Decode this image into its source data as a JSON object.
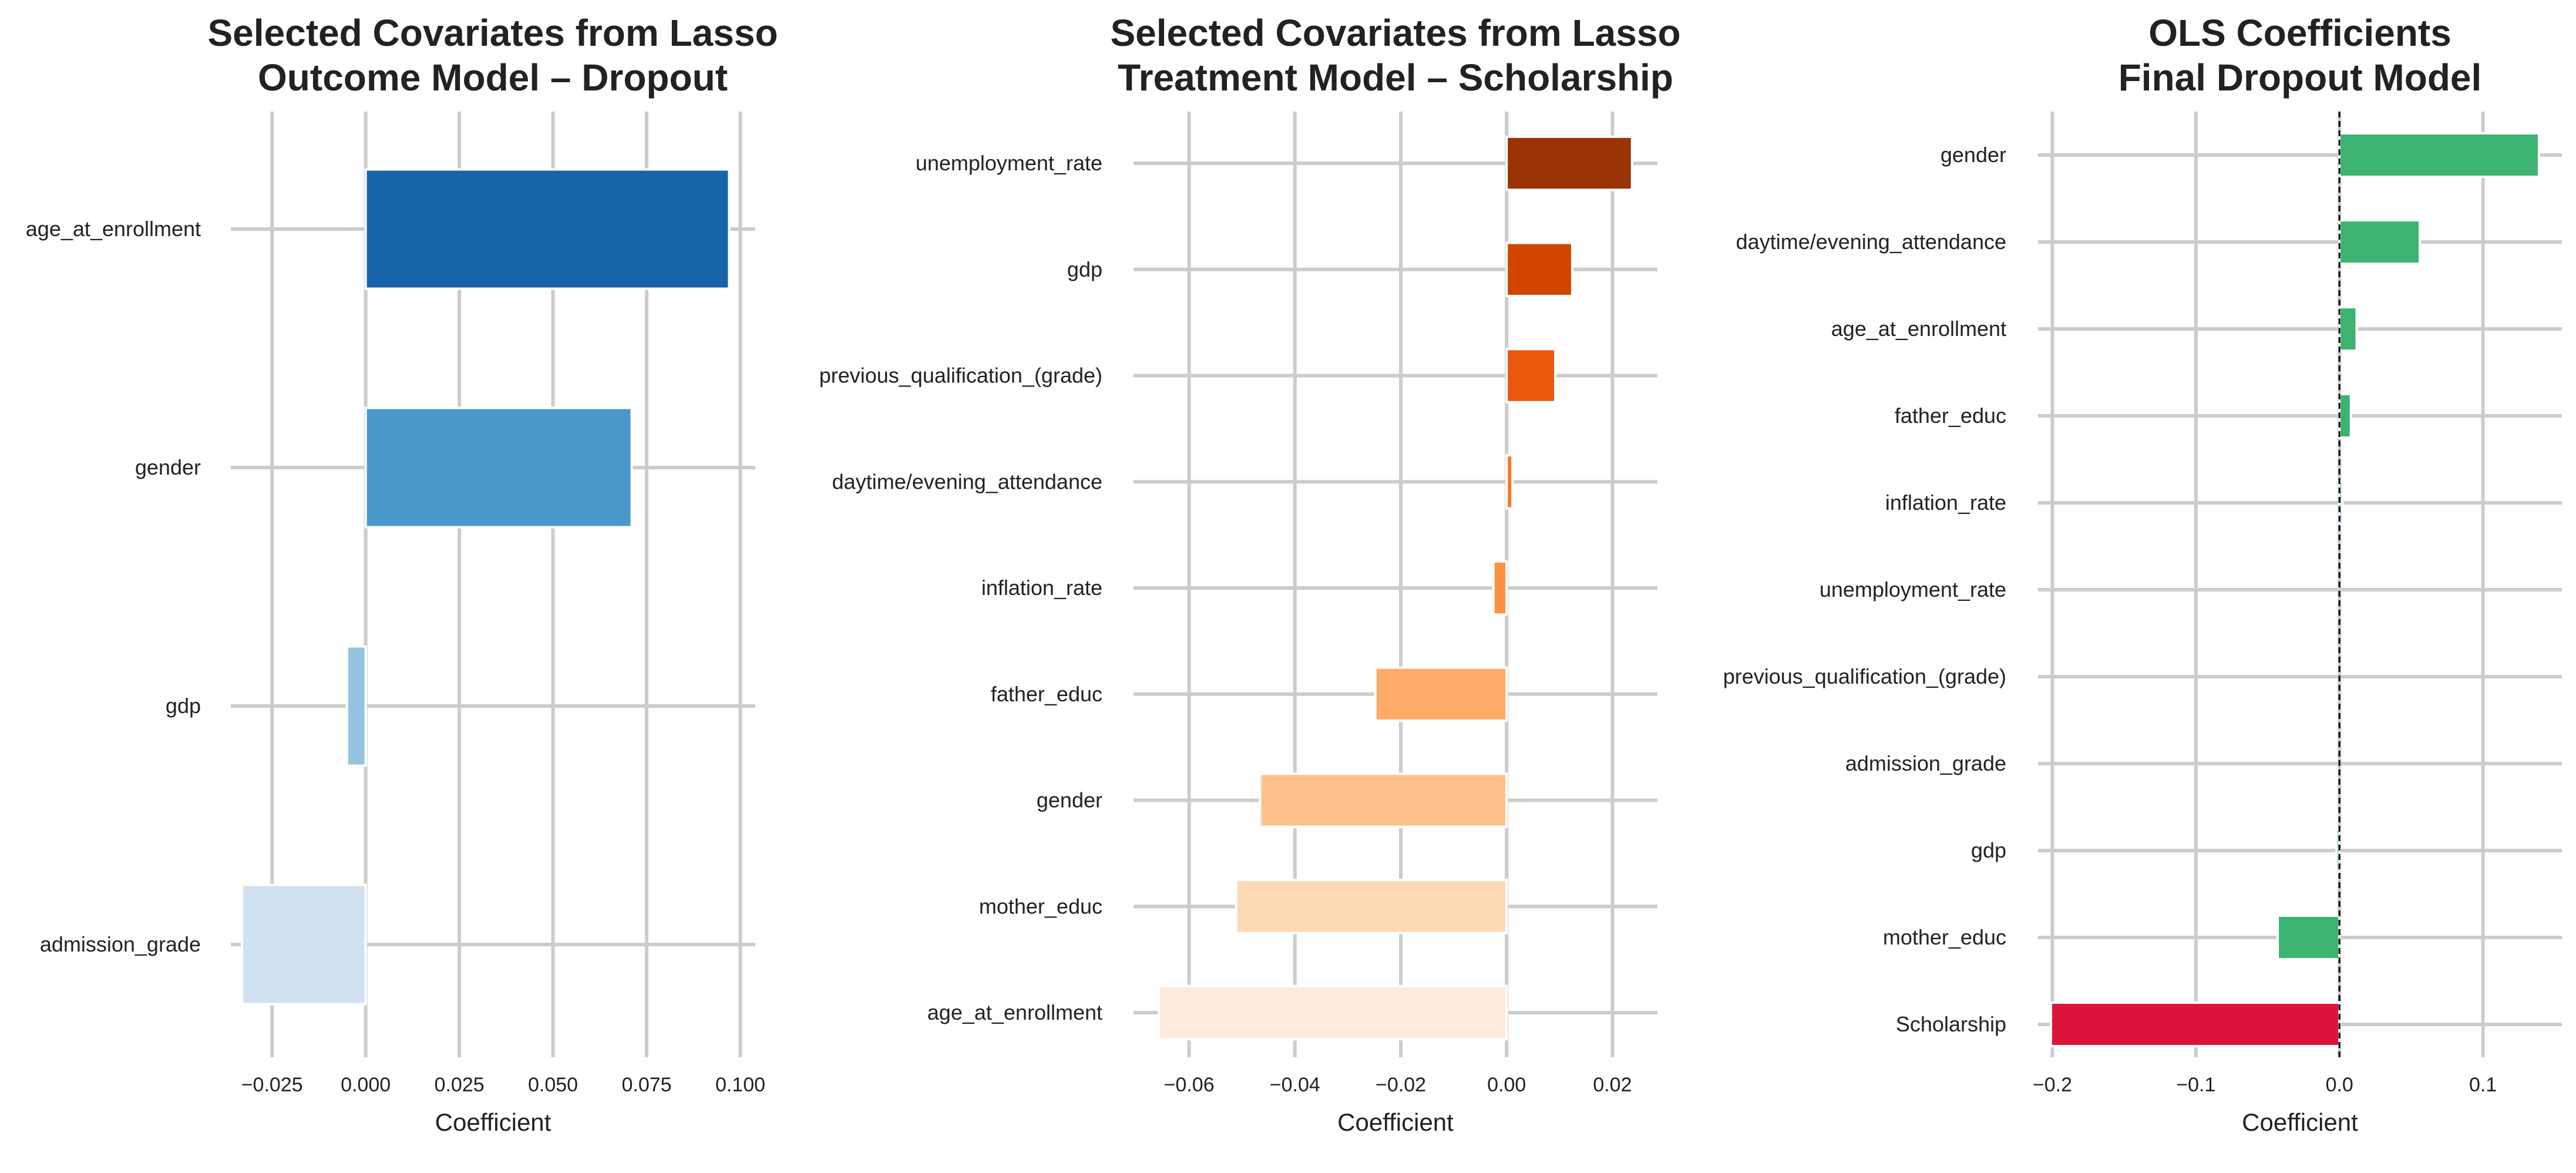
{
  "chart_data": [
    {
      "type": "bar",
      "orientation": "horizontal",
      "title": [
        "Selected Covariates from Lasso",
        "Outcome Model – Dropout"
      ],
      "xlabel": "Coefficient",
      "ylabel": "",
      "grid": true,
      "xlim": [
        -0.036,
        0.104
      ],
      "xticks": [
        -0.025,
        0.0,
        0.025,
        0.05,
        0.075,
        0.1
      ],
      "xtick_labels": [
        "−0.025",
        "0.000",
        "0.025",
        "0.050",
        "0.075",
        "0.100"
      ],
      "categories": [
        "age_at_enrollment",
        "gender",
        "gdp",
        "admission_grade"
      ],
      "values": [
        0.097,
        0.071,
        -0.005,
        -0.033
      ],
      "colors": [
        "#1764ab",
        "#4a98c9",
        "#94c4df",
        "#d0e1f2"
      ]
    },
    {
      "type": "bar",
      "orientation": "horizontal",
      "title": [
        "Selected Covariates from Lasso",
        "Treatment Model – Scholarship"
      ],
      "xlabel": "Coefficient",
      "ylabel": "",
      "grid": true,
      "xlim": [
        -0.0705,
        0.0285
      ],
      "xticks": [
        -0.06,
        -0.04,
        -0.02,
        0.0,
        0.02
      ],
      "xtick_labels": [
        "−0.06",
        "−0.04",
        "−0.02",
        "0.00",
        "0.02"
      ],
      "categories": [
        "unemployment_rate",
        "gdp",
        "previous_qualification_(grade)",
        "daytime/evening_attendance",
        "inflation_rate",
        "father_educ",
        "gender",
        "mother_educ",
        "age_at_enrollment"
      ],
      "values": [
        0.0237,
        0.0124,
        0.0092,
        0.0011,
        -0.0025,
        -0.0248,
        -0.0466,
        -0.0511,
        -0.0657
      ],
      "colors": [
        "#9a3203",
        "#d14501",
        "#ea580d",
        "#f67824",
        "#fd9243",
        "#fdab67",
        "#fdc28c",
        "#fdd9b4",
        "#feeada"
      ]
    },
    {
      "type": "bar",
      "orientation": "horizontal",
      "title": [
        "OLS Coefficients",
        "Final Dropout Model"
      ],
      "xlabel": "Coefficient",
      "ylabel": "",
      "grid": true,
      "xlim": [
        -0.21,
        0.155
      ],
      "xticks": [
        -0.2,
        -0.1,
        0.0,
        0.1
      ],
      "xtick_labels": [
        "−0.2",
        "−0.1",
        "0.0",
        "0.1"
      ],
      "zero_line": true,
      "categories": [
        "gender",
        "daytime/evening_attendance",
        "age_at_enrollment",
        "father_educ",
        "inflation_rate",
        "unemployment_rate",
        "previous_qualification_(grade)",
        "admission_grade",
        "gdp",
        "mother_educ",
        "Scholarship"
      ],
      "values": [
        0.139,
        0.056,
        0.012,
        0.008,
        0.002,
        0.0,
        0.0,
        0.0,
        -0.002,
        -0.043,
        -0.201
      ],
      "colors": [
        "#3cb371",
        "#3cb371",
        "#3cb371",
        "#3cb371",
        "#3cb371",
        "#3cb371",
        "#3cb371",
        "#3cb371",
        "#3cb371",
        "#3cb371",
        "#dc143c"
      ]
    }
  ]
}
